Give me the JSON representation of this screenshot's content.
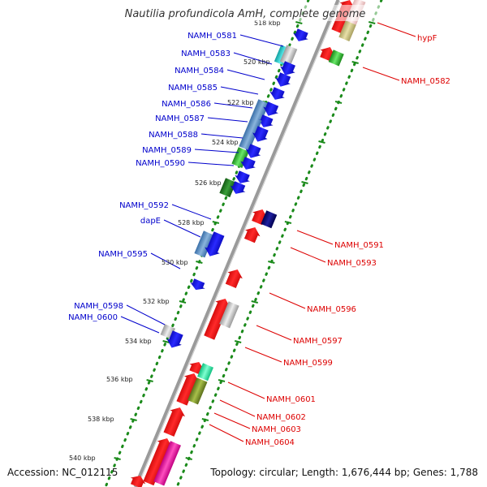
{
  "title": "Nautilia profundicola AmH, complete genome",
  "footer": {
    "accession": "Accession: NC_012115",
    "topology": "Topology: circular; Length: 1,676,444 bp; Genes: 1,788"
  },
  "colors": {
    "forward_label": "#0000cc",
    "reverse_label": "#dd0000",
    "backbone": "#9a9a9a",
    "dots": "#1a8a1a"
  },
  "ticks": [
    "518 kbp",
    "520 kbp",
    "522 kbp",
    "524 kbp",
    "526 kbp",
    "528 kbp",
    "530 kbp",
    "532 kbp",
    "534 kbp",
    "536 kbp",
    "538 kbp",
    "540 kbp"
  ],
  "forward_labels": [
    "NAMH_0581",
    "NAMH_0583",
    "NAMH_0584",
    "NAMH_0585",
    "NAMH_0586",
    "NAMH_0587",
    "NAMH_0588",
    "NAMH_0589",
    "NAMH_0590",
    "NAMH_0592",
    "dapE",
    "NAMH_0595",
    "NAMH_0598",
    "NAMH_0600"
  ],
  "reverse_labels": [
    "hypF",
    "NAMH_0582",
    "NAMH_0591",
    "NAMH_0593",
    "NAMH_0596",
    "NAMH_0597",
    "NAMH_0599",
    "NAMH_0601",
    "NAMH_0602",
    "NAMH_0603",
    "NAMH_0604"
  ]
}
